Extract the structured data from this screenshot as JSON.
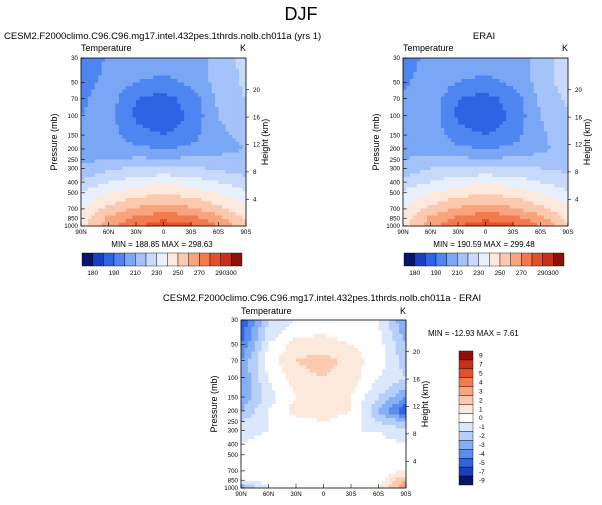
{
  "figure": {
    "title": "DJF"
  },
  "panels": [
    {
      "id": "model",
      "header": "CESM2.F2000climo.C96.C96.mg17.intel.432pes.1thrds.nolb.ch011a (yrs 1)",
      "field_label": "Temperature",
      "unit": "K",
      "stats": "MIN = 188.85   MAX = 298.63"
    },
    {
      "id": "obs",
      "header": "ERAI",
      "field_label": "Temperature",
      "unit": "K",
      "stats": "MIN = 190.59   MAX = 299.48"
    },
    {
      "id": "diff",
      "header": "CESM2.F2000climo.C96.C96.mg17.intel.432pes.1thrds.nolb.ch011a - ERAI",
      "field_label": "Temperature",
      "unit": "K",
      "stats": "MIN = -12.93   MAX =  7.61"
    }
  ],
  "axes": {
    "ylabel": "Pressure (mb)",
    "ylabel_right": "Height (km)",
    "pressure_ticks": [
      "30",
      "50",
      "70",
      "100",
      "150",
      "200",
      "250",
      "300",
      "400",
      "500",
      "700",
      "850",
      "1000"
    ],
    "height_ticks": [
      "20",
      "16",
      "12",
      "8",
      "4"
    ],
    "lat_ticks": [
      "90N",
      "60N",
      "30N",
      "0",
      "30S",
      "60S",
      "90S"
    ]
  },
  "colorbars": {
    "main_labels": [
      "180",
      "190",
      "210",
      "230",
      "250",
      "270",
      "290",
      "300"
    ],
    "diff_labels": [
      "9",
      "7",
      "5",
      "4",
      "3",
      "2",
      "1",
      "0",
      "-1",
      "-2",
      "-3",
      "-4",
      "-5",
      "-7",
      "-9"
    ],
    "main_colors": [
      "#08156e",
      "#1a3ec0",
      "#2e63e3",
      "#4f85f0",
      "#7aa6f6",
      "#a3c3fa",
      "#c8dafc",
      "#e8f0fd",
      "#fde8dc",
      "#fcc9af",
      "#f8a47e",
      "#f27a4f",
      "#e5502b",
      "#c9301a",
      "#8e1208"
    ],
    "diff_colors": [
      "#8e1208",
      "#c9301a",
      "#e5502b",
      "#f27a4f",
      "#f8a47e",
      "#fcc9af",
      "#fde8dc",
      "#ffffff",
      "#dbe8fc",
      "#b5cffa",
      "#87aff5",
      "#5b8cee",
      "#2e63e3",
      "#1a3ec0",
      "#08156e"
    ]
  },
  "chart_data": [
    {
      "type": "heatmap",
      "title": "CESM2.F2000climo.C96.C96.mg17.intel.432pes.1thrds.nolb.ch011a (yrs 1)",
      "x": [
        "90N",
        "60N",
        "30N",
        "0",
        "30S",
        "60S",
        "90S"
      ],
      "y": [
        30,
        50,
        70,
        100,
        150,
        200,
        250,
        300,
        400,
        500,
        700,
        850,
        1000
      ],
      "values": [
        [
          200,
          212,
          216,
          218,
          216,
          222,
          234
        ],
        [
          205,
          214,
          210,
          206,
          212,
          224,
          232
        ],
        [
          208,
          215,
          200,
          196,
          204,
          222,
          230
        ],
        [
          210,
          214,
          198,
          192,
          202,
          220,
          226
        ],
        [
          212,
          214,
          205,
          200,
          206,
          218,
          222
        ],
        [
          215,
          216,
          212,
          210,
          212,
          218,
          220
        ],
        [
          218,
          220,
          222,
          222,
          222,
          222,
          222
        ],
        [
          222,
          228,
          232,
          234,
          232,
          228,
          226
        ],
        [
          232,
          240,
          246,
          248,
          246,
          240,
          234
        ],
        [
          240,
          250,
          256,
          258,
          256,
          250,
          242
        ],
        [
          250,
          264,
          272,
          276,
          272,
          264,
          252
        ],
        [
          254,
          272,
          282,
          288,
          284,
          274,
          258
        ],
        [
          256,
          276,
          290,
          296,
          292,
          280,
          262
        ]
      ],
      "zlim": [
        180,
        300
      ],
      "min": 188.85,
      "max": 298.63
    },
    {
      "type": "heatmap",
      "title": "ERAI",
      "x": [
        "90N",
        "60N",
        "30N",
        "0",
        "30S",
        "60S",
        "90S"
      ],
      "y": [
        30,
        50,
        70,
        100,
        150,
        200,
        250,
        300,
        400,
        500,
        700,
        850,
        1000
      ],
      "values": [
        [
          204,
          214,
          216,
          218,
          216,
          222,
          238
        ],
        [
          208,
          216,
          210,
          206,
          212,
          224,
          236
        ],
        [
          212,
          217,
          200,
          196,
          204,
          222,
          232
        ],
        [
          214,
          216,
          198,
          192,
          202,
          220,
          228
        ],
        [
          216,
          216,
          205,
          200,
          206,
          218,
          226
        ],
        [
          218,
          218,
          212,
          210,
          212,
          218,
          224
        ],
        [
          220,
          222,
          222,
          222,
          222,
          224,
          224
        ],
        [
          224,
          230,
          232,
          234,
          232,
          230,
          228
        ],
        [
          234,
          240,
          246,
          248,
          246,
          240,
          234
        ],
        [
          242,
          250,
          256,
          258,
          256,
          250,
          242
        ],
        [
          250,
          264,
          272,
          276,
          272,
          264,
          252
        ],
        [
          254,
          272,
          282,
          288,
          284,
          274,
          256
        ],
        [
          256,
          276,
          290,
          297,
          292,
          280,
          260
        ]
      ],
      "zlim": [
        180,
        300
      ],
      "min": 190.59,
      "max": 299.48
    },
    {
      "type": "heatmap",
      "title": "CESM2.F2000climo.C96.C96.mg17.intel.432pes.1thrds.nolb.ch011a - ERAI",
      "x": [
        "90N",
        "60N",
        "30N",
        "0",
        "30S",
        "60S",
        "90S"
      ],
      "y": [
        30,
        50,
        70,
        100,
        150,
        200,
        250,
        300,
        400,
        500,
        700,
        850,
        1000
      ],
      "values": [
        [
          -6,
          -2,
          -1,
          -0.5,
          -1,
          -1,
          -4
        ],
        [
          -5,
          -1,
          0.5,
          0.5,
          0,
          -0.5,
          -3
        ],
        [
          -4,
          -0.5,
          1,
          1.5,
          0.5,
          -0.5,
          -2.5
        ],
        [
          -4,
          -1,
          0.5,
          1,
          0.5,
          -1,
          -2
        ],
        [
          -4,
          -1.5,
          0,
          0.5,
          0,
          -2,
          -4
        ],
        [
          -3,
          -1,
          0.5,
          0.5,
          0,
          -3,
          -6
        ],
        [
          -2,
          -1,
          -0.5,
          0,
          -0.5,
          -2,
          -3
        ],
        [
          -1.5,
          -1,
          -0.5,
          -0.5,
          -1,
          -1,
          -2
        ],
        [
          -1,
          -0.5,
          -0.5,
          -0.5,
          -0.5,
          -0.5,
          -1
        ],
        [
          -0.5,
          -0.5,
          -0.5,
          -0.5,
          -0.5,
          -0.5,
          -0.5
        ],
        [
          -0.5,
          -0.5,
          -0.5,
          -0.5,
          -0.5,
          -0.5,
          0
        ],
        [
          -1,
          -0.5,
          0,
          -0.5,
          0,
          -0.5,
          2
        ],
        [
          -4,
          -1,
          -0.5,
          -0.5,
          0,
          0,
          3
        ]
      ],
      "zlim": [
        -9,
        9
      ],
      "min": -12.93,
      "max": 7.61
    }
  ]
}
